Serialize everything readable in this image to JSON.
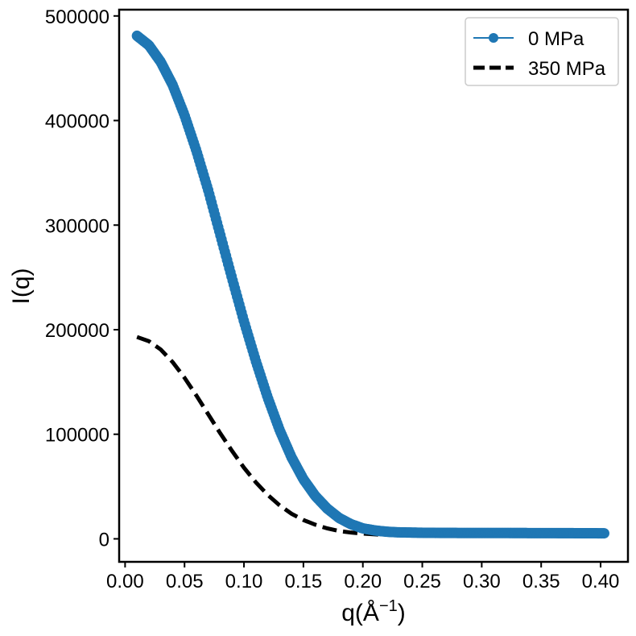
{
  "chart_data": {
    "type": "line",
    "xlabel": "q(Å",
    "xlabel_superscript": "−1",
    "xlabel_close": ")",
    "ylabel": "I(q)",
    "xlim": [
      -0.005,
      0.423
    ],
    "ylim": [
      -22000,
      506000
    ],
    "xticks": [
      0.0,
      0.05,
      0.1,
      0.15,
      0.2,
      0.25,
      0.3,
      0.35,
      0.4
    ],
    "xtick_labels": [
      "0.00",
      "0.05",
      "0.10",
      "0.15",
      "0.20",
      "0.25",
      "0.30",
      "0.35",
      "0.40"
    ],
    "yticks": [
      0,
      100000,
      200000,
      300000,
      400000,
      500000
    ],
    "ytick_labels": [
      "0",
      "100000",
      "200000",
      "300000",
      "400000",
      "500000"
    ],
    "grid": false,
    "legend_position": "upper-right",
    "series": [
      {
        "name": "0 MPa",
        "color": "#1f77b4",
        "style": "line-markers",
        "x": [
          0.01,
          0.02,
          0.03,
          0.04,
          0.05,
          0.06,
          0.07,
          0.08,
          0.09,
          0.1,
          0.11,
          0.12,
          0.13,
          0.14,
          0.15,
          0.16,
          0.17,
          0.18,
          0.19,
          0.2,
          0.21,
          0.22,
          0.23,
          0.24,
          0.25,
          0.26,
          0.28,
          0.3,
          0.32,
          0.34,
          0.36,
          0.38,
          0.4,
          0.403
        ],
        "y": [
          481000,
          472000,
          456000,
          434000,
          405000,
          371000,
          333000,
          291000,
          249000,
          208000,
          170000,
          135000,
          104000,
          78000,
          57000,
          41000,
          29000,
          20000,
          14000,
          10000,
          8000,
          6800,
          6200,
          6000,
          5800,
          5700,
          5600,
          5600,
          5600,
          5500,
          5500,
          5400,
          5300,
          5300
        ]
      },
      {
        "name": "350 MPa",
        "color": "#000000",
        "style": "dashed",
        "x": [
          0.01,
          0.02,
          0.03,
          0.04,
          0.05,
          0.06,
          0.07,
          0.08,
          0.09,
          0.1,
          0.11,
          0.12,
          0.13,
          0.14,
          0.15,
          0.16,
          0.17,
          0.18,
          0.19,
          0.2,
          0.21,
          0.22,
          0.23,
          0.24,
          0.26,
          0.28,
          0.3,
          0.34,
          0.38,
          0.403
        ],
        "y": [
          193000,
          189000,
          181000,
          169000,
          154000,
          137000,
          119000,
          101000,
          84000,
          68000,
          54000,
          42000,
          32000,
          24000,
          18000,
          13500,
          10000,
          7500,
          6000,
          5000,
          4300,
          3800,
          3500,
          3300,
          3100,
          3000,
          3000,
          3000,
          3000,
          3000
        ]
      }
    ]
  }
}
